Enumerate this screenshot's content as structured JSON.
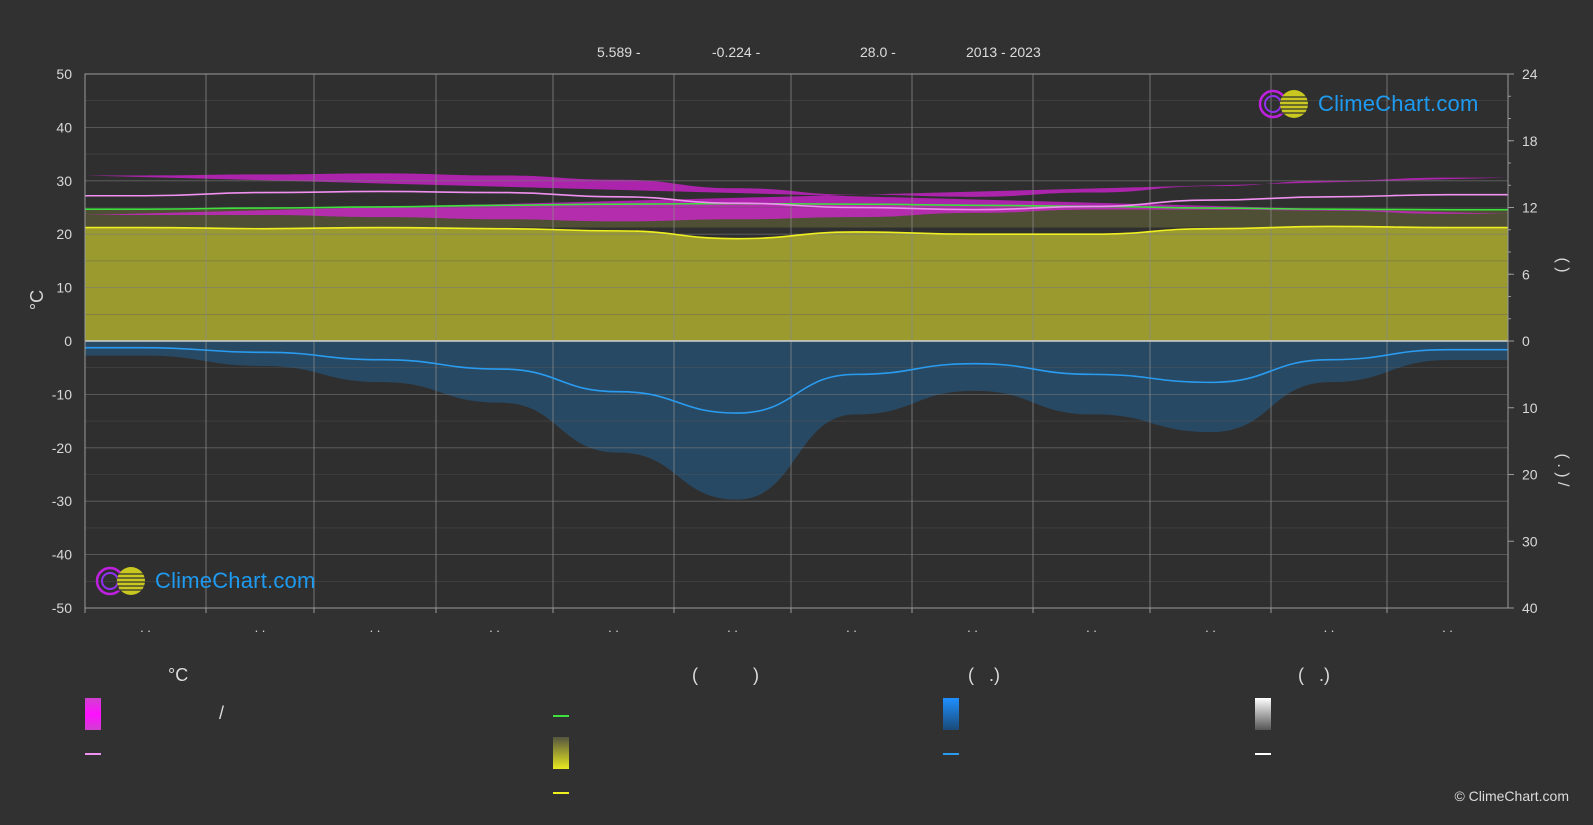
{
  "header": {
    "lat_label": "5.589 -",
    "lon_label": "-0.224 -",
    "elev_label": "28.0 -",
    "years_label": "2013 - 2023"
  },
  "logo": {
    "text": "ClimeChart.com"
  },
  "copyright": "© ClimeChart.com",
  "legend": {
    "col1_title": "°C",
    "col2_title": "(           )",
    "col3_title": "(   .)",
    "col4_title": "(   .)",
    "col1_slash": "/"
  },
  "colors": {
    "background": "#313131",
    "temp_band": "#e020e0",
    "temp_mean": "#f090f0",
    "daylight": "#3ee03e",
    "sunshine_band": "#b8b830",
    "sunshine_mean": "#f0f020",
    "precip_band": "#1e7cc8",
    "precip_mean": "#2a9cf0",
    "snow": "#ffffff"
  },
  "chart_data": {
    "type": "area",
    "months_count": 12,
    "month_labels": [
      ". .",
      ". .",
      ". .",
      ". .",
      ". .",
      ". .",
      ". .",
      ". .",
      ". .",
      ". .",
      ". .",
      ". ."
    ],
    "y_left": {
      "label": "°C",
      "range": [
        -50,
        50
      ],
      "ticks": [
        50,
        40,
        30,
        20,
        10,
        0,
        -10,
        -20,
        -30,
        -40,
        -50
      ]
    },
    "y_right_top": {
      "label": "(   )",
      "range": [
        0,
        24
      ],
      "ticks": [
        24,
        18,
        12,
        6,
        0
      ]
    },
    "y_right_bottom": {
      "label": "(  .  ) /",
      "range": [
        0,
        40
      ],
      "ticks": [
        0,
        10,
        20,
        30,
        40
      ]
    },
    "grid": true,
    "series": [
      {
        "key": "temp_max",
        "values": [
          31.0,
          31.2,
          31.4,
          31.0,
          30.2,
          28.6,
          27.4,
          27.0,
          27.8,
          29.0,
          30.0,
          30.6
        ]
      },
      {
        "key": "temp_min",
        "values": [
          23.8,
          24.4,
          24.6,
          24.6,
          24.0,
          23.2,
          22.8,
          22.4,
          22.8,
          23.2,
          23.6,
          23.6
        ]
      },
      {
        "key": "temp_mean",
        "values": [
          27.2,
          27.8,
          28.0,
          27.8,
          27.0,
          25.8,
          25.0,
          24.6,
          25.2,
          26.4,
          27.0,
          27.4
        ]
      },
      {
        "key": "daylight",
        "values": [
          11.85,
          11.95,
          12.05,
          12.2,
          12.3,
          12.35,
          12.3,
          12.2,
          12.1,
          11.95,
          11.85,
          11.8
        ]
      },
      {
        "key": "sunshine_mean",
        "values": [
          10.2,
          10.1,
          10.2,
          10.1,
          9.9,
          9.2,
          9.8,
          9.6,
          9.6,
          10.1,
          10.3,
          10.2
        ]
      },
      {
        "key": "precip_mean",
        "values": [
          1.0,
          1.7,
          2.8,
          4.2,
          7.6,
          10.8,
          5.0,
          3.4,
          5.0,
          6.2,
          2.8,
          1.3
        ]
      }
    ]
  }
}
